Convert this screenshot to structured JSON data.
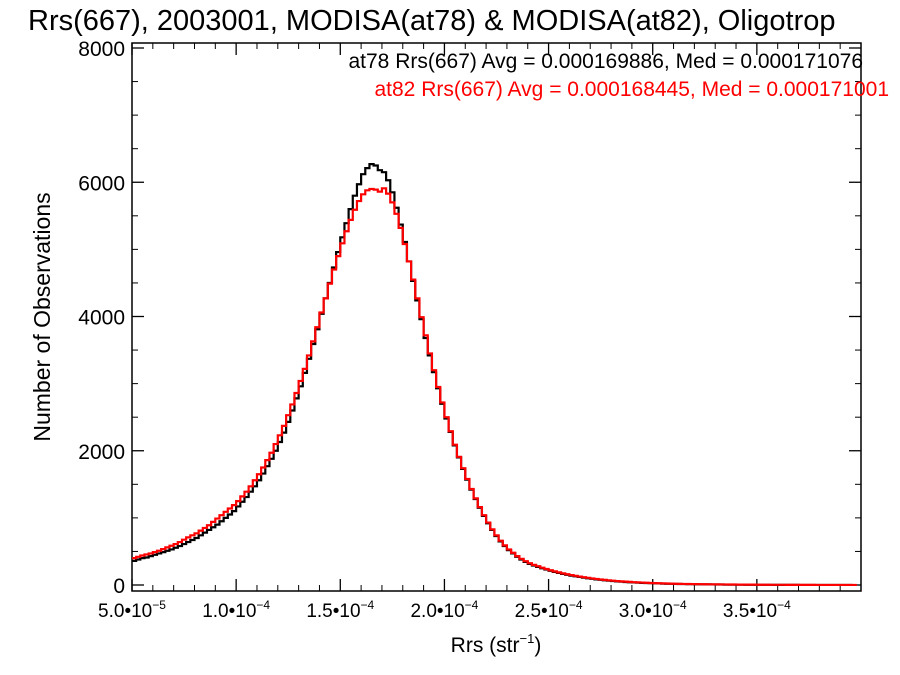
{
  "chart_data": {
    "type": "histogram",
    "title": "Rrs(667), 2003001, MODISA(at78) & MODISA(at82), Oligotrop",
    "xlabel": "Rrs (str",
    "xlabel_sup": "−1",
    "xlabel_close": ")",
    "ylabel": "Number of Observations",
    "xlim": [
      5e-05,
      0.0004
    ],
    "ylim": [
      0,
      8000
    ],
    "y_ticks": [
      {
        "value": 0,
        "label": "0"
      },
      {
        "value": 2000,
        "label": "2000"
      },
      {
        "value": 4000,
        "label": "4000"
      },
      {
        "value": 6000,
        "label": "6000"
      },
      {
        "value": 8000,
        "label": "8000"
      }
    ],
    "x_ticks": [
      {
        "value": 5e-05,
        "mant": "5.0•10",
        "exp": "−5"
      },
      {
        "value": 0.0001,
        "mant": "1.0•10",
        "exp": "−4"
      },
      {
        "value": 0.00015,
        "mant": "1.5•10",
        "exp": "−4"
      },
      {
        "value": 0.0002,
        "mant": "2.0•10",
        "exp": "−4"
      },
      {
        "value": 0.00025,
        "mant": "2.5•10",
        "exp": "−4"
      },
      {
        "value": 0.0003,
        "mant": "3.0•10",
        "exp": "−4"
      },
      {
        "value": 0.00035,
        "mant": "3.5•10",
        "exp": "−4"
      }
    ],
    "legend_placement": "top-right",
    "series": [
      {
        "name": "at78",
        "color": "#000000",
        "stat_label": "at78 Rrs(667) Avg = 0.000169886, Med = 0.000171076",
        "bin_start": 5e-05,
        "bin_width": 2e-06,
        "counts": [
          360,
          380,
          400,
          410,
          430,
          450,
          470,
          490,
          510,
          530,
          555,
          580,
          610,
          640,
          670,
          700,
          740,
          780,
          820,
          860,
          900,
          950,
          1000,
          1050,
          1100,
          1170,
          1240,
          1310,
          1390,
          1470,
          1560,
          1660,
          1770,
          1880,
          2000,
          2130,
          2270,
          2430,
          2600,
          2780,
          2960,
          3160,
          3370,
          3590,
          3810,
          4040,
          4270,
          4500,
          4730,
          4960,
          5180,
          5390,
          5600,
          5800,
          5970,
          6120,
          6210,
          6270,
          6250,
          6180,
          6150,
          6030,
          5850,
          5620,
          5370,
          5110,
          4820,
          4530,
          4240,
          3960,
          3680,
          3420,
          3170,
          2930,
          2700,
          2480,
          2280,
          2080,
          1900,
          1730,
          1570,
          1420,
          1280,
          1150,
          1030,
          920,
          820,
          730,
          650,
          580,
          520,
          470,
          420,
          380,
          345,
          315,
          290,
          270,
          250,
          230,
          212,
          195,
          180,
          165,
          152,
          140,
          130,
          120,
          110,
          100,
          92,
          84,
          77,
          70,
          64,
          59,
          54,
          49,
          45,
          41,
          38,
          35,
          32,
          29,
          27,
          25,
          23,
          21,
          19,
          18,
          16,
          15,
          14,
          13,
          12,
          11,
          10,
          9,
          9,
          8,
          7,
          7,
          6,
          6,
          5,
          5,
          5,
          4,
          4,
          4,
          3,
          3,
          3,
          3,
          2,
          2,
          2,
          2,
          2,
          2,
          1,
          1,
          1,
          1,
          1,
          1,
          1,
          1,
          1,
          1,
          1,
          1,
          1
        ]
      },
      {
        "name": "at82",
        "color": "#ff0000",
        "stat_label": "at82 Rrs(667) Avg = 0.000168445, Med = 0.000171001",
        "bin_start": 5e-05,
        "bin_width": 2e-06,
        "counts": [
          400,
          420,
          440,
          455,
          470,
          490,
          510,
          535,
          560,
          585,
          610,
          640,
          675,
          710,
          740,
          770,
          810,
          850,
          890,
          940,
          990,
          1040,
          1090,
          1140,
          1190,
          1250,
          1320,
          1390,
          1470,
          1560,
          1650,
          1750,
          1860,
          1970,
          2100,
          2230,
          2370,
          2530,
          2690,
          2860,
          3040,
          3220,
          3420,
          3630,
          3840,
          4060,
          4270,
          4490,
          4700,
          4900,
          5090,
          5270,
          5440,
          5590,
          5720,
          5820,
          5880,
          5900,
          5890,
          5860,
          5910,
          5830,
          5700,
          5530,
          5320,
          5080,
          4820,
          4550,
          4270,
          3990,
          3720,
          3450,
          3200,
          2950,
          2720,
          2500,
          2290,
          2090,
          1910,
          1740,
          1580,
          1430,
          1290,
          1160,
          1040,
          930,
          830,
          740,
          660,
          590,
          530,
          480,
          430,
          390,
          355,
          325,
          300,
          280,
          258,
          238,
          220,
          203,
          188,
          173,
          160,
          148,
          137,
          126,
          116,
          107,
          98,
          90,
          83,
          76,
          70,
          64,
          59,
          54,
          50,
          46,
          42,
          39,
          36,
          33,
          30,
          28,
          26,
          24,
          22,
          20,
          19,
          17,
          16,
          15,
          14,
          13,
          12,
          11,
          10,
          10,
          9,
          8,
          8,
          7,
          7,
          6,
          6,
          5,
          5,
          5,
          4,
          4,
          4,
          3,
          3,
          3,
          3,
          2,
          2,
          2,
          2,
          2,
          2,
          2,
          1,
          1,
          1,
          1,
          1,
          1,
          1,
          1,
          1,
          1
        ]
      }
    ]
  }
}
